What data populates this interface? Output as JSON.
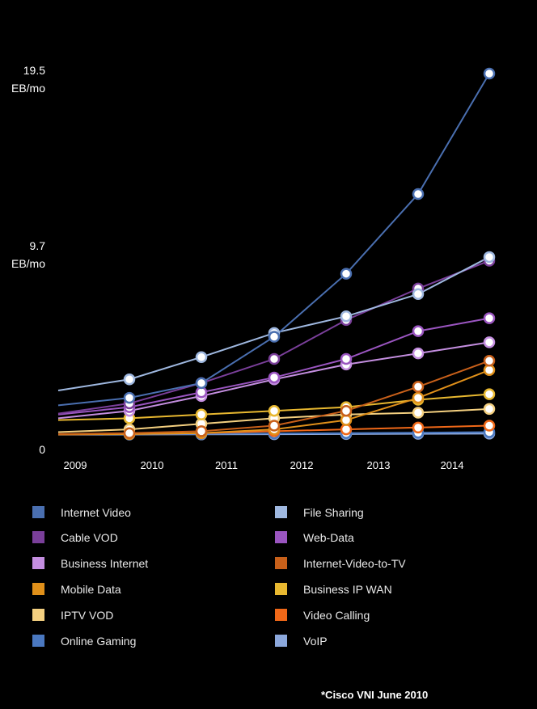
{
  "chart_data": {
    "type": "line",
    "title": "",
    "xlabel": "",
    "ylabel": "",
    "x_labels": [
      "2009",
      "2010",
      "2011",
      "2012",
      "2013",
      "2014"
    ],
    "x_point_labels": [
      "",
      "2010",
      "2011",
      "2012",
      "2013",
      "2014"
    ],
    "y_ticks": [
      {
        "value": 0,
        "lines": [
          "0"
        ]
      },
      {
        "value": 9.7,
        "lines": [
          "9.7",
          "EB/mo"
        ]
      },
      {
        "value": 19.5,
        "lines": [
          "19.5",
          "EB/mo"
        ]
      }
    ],
    "ylim": [
      0,
      19.5
    ],
    "grid": false,
    "legend_position": "bottom",
    "source_note": "*Cisco VNI June 2010",
    "series": [
      {
        "name": "Internet Video",
        "color": "#4a6fb0",
        "values": [
          2.0,
          2.8,
          5.3,
          8.7,
          13.0,
          19.5
        ]
      },
      {
        "name": "File Sharing",
        "color": "#9fb8e0",
        "values": [
          3.0,
          4.2,
          5.5,
          6.4,
          7.6,
          9.6
        ]
      },
      {
        "name": "Cable VOD",
        "color": "#7a3f9a",
        "values": [
          1.7,
          2.8,
          4.1,
          6.2,
          7.9,
          9.4
        ]
      },
      {
        "name": "Web-Data",
        "color": "#9a55c0",
        "values": [
          1.5,
          2.3,
          3.1,
          4.1,
          5.6,
          6.3
        ]
      },
      {
        "name": "Business Internet",
        "color": "#c48ee0",
        "values": [
          1.3,
          2.1,
          3.0,
          3.8,
          4.4,
          5.0
        ]
      },
      {
        "name": "Internet-Video-to-TV",
        "color": "#c8601a",
        "values": [
          0.1,
          0.2,
          0.5,
          1.3,
          2.6,
          4.0
        ]
      },
      {
        "name": "Mobile Data",
        "color": "#e0901a",
        "values": [
          0.05,
          0.1,
          0.3,
          0.8,
          2.0,
          3.5
        ]
      },
      {
        "name": "Business IP WAN",
        "color": "#e8b830",
        "values": [
          0.9,
          1.1,
          1.3,
          1.5,
          1.9,
          2.2
        ]
      },
      {
        "name": "IPTV VOD",
        "color": "#f4d080",
        "values": [
          0.3,
          0.6,
          0.9,
          1.1,
          1.2,
          1.4
        ]
      },
      {
        "name": "Video Calling",
        "color": "#f06818",
        "values": [
          0.05,
          0.1,
          0.2,
          0.3,
          0.4,
          0.5
        ]
      },
      {
        "name": "Online Gaming",
        "color": "#4a78c0",
        "values": [
          0.05,
          0.06,
          0.08,
          0.1,
          0.12,
          0.15
        ]
      },
      {
        "name": "VoIP",
        "color": "#8ca8dc",
        "values": [
          0.02,
          0.03,
          0.04,
          0.05,
          0.06,
          0.07
        ]
      }
    ]
  }
}
